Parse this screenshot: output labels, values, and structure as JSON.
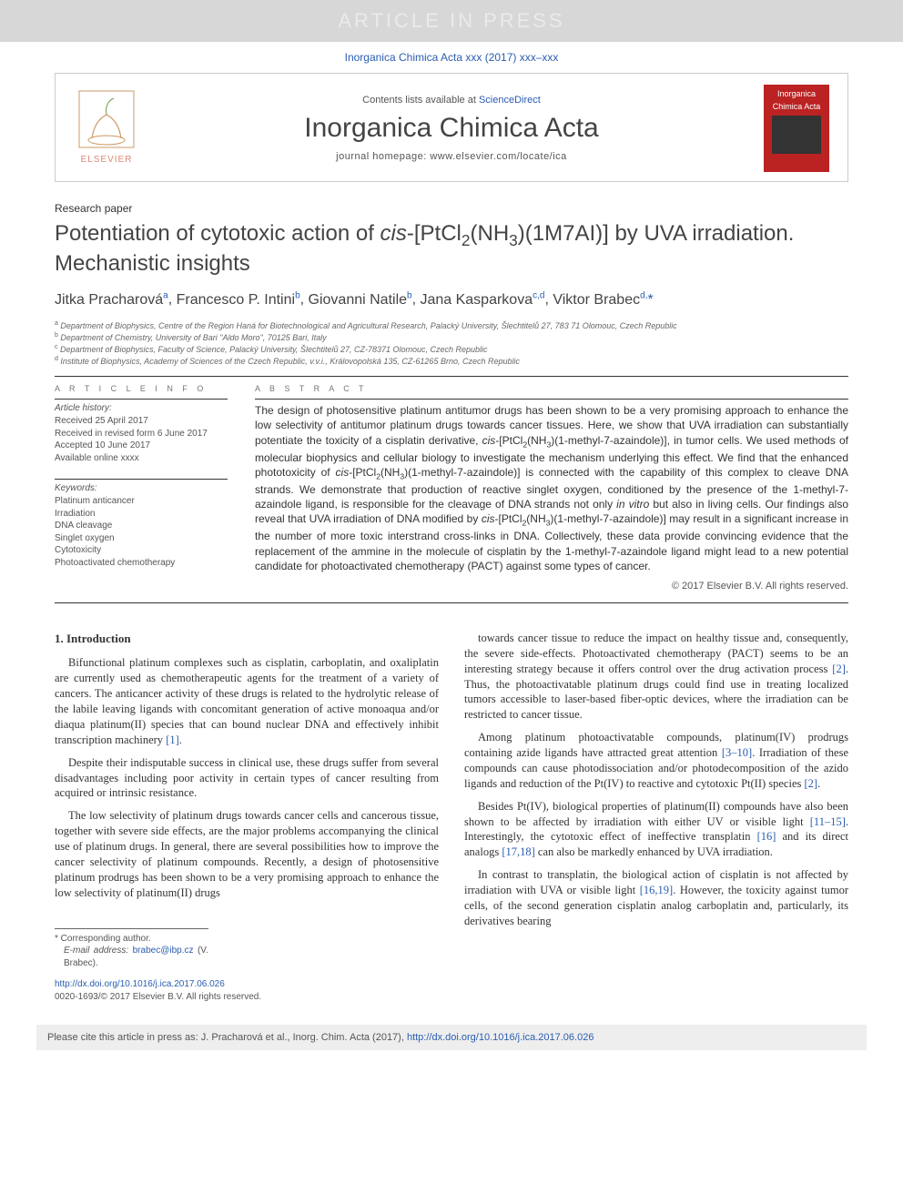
{
  "banner": {
    "text": "ARTICLE IN PRESS"
  },
  "citation_top": {
    "journal": "Inorganica Chimica Acta",
    "volume": "xxx (2017) xxx–xxx"
  },
  "masthead": {
    "contents_prefix": "Contents lists available at ",
    "contents_link": "ScienceDirect",
    "journal_title": "Inorganica Chimica Acta",
    "homepage_prefix": "journal homepage: ",
    "homepage_url": "www.elsevier.com/locate/ica",
    "elsevier_label": "ELSEVIER",
    "cover": {
      "line1": "Inorganica",
      "line2": "Chimica Acta"
    }
  },
  "paper": {
    "type": "Research paper",
    "title_html": "Potentiation of cytotoxic action of <i>cis</i>-[PtCl<sub>2</sub>(NH<sub>3</sub>)(1M7AI)] by UVA irradiation. Mechanistic insights",
    "authors": [
      {
        "name": "Jitka Pracharová",
        "aff": "a"
      },
      {
        "name": "Francesco P. Intini",
        "aff": "b"
      },
      {
        "name": "Giovanni Natile",
        "aff": "b"
      },
      {
        "name": "Jana Kasparkova",
        "aff": "c,d"
      },
      {
        "name": "Viktor Brabec",
        "aff": "d,",
        "star": true
      }
    ],
    "affiliations": [
      {
        "key": "a",
        "text": "Department of Biophysics, Centre of the Region Haná for Biotechnological and Agricultural Research, Palacký University, Šlechtitelů 27, 783 71 Olomouc, Czech Republic"
      },
      {
        "key": "b",
        "text": "Department of Chemistry, University of Bari \"Aldo Moro\", 70125 Bari, Italy"
      },
      {
        "key": "c",
        "text": "Department of Biophysics, Faculty of Science, Palacký University, Šlechtitelů 27, CZ-78371 Olomouc, Czech Republic"
      },
      {
        "key": "d",
        "text": "Institute of Biophysics, Academy of Sciences of the Czech Republic, v.v.i., Královopolská 135, CZ-61265 Brno, Czech Republic"
      }
    ]
  },
  "article_info": {
    "heading": "A R T I C L E   I N F O",
    "history_label": "Article history:",
    "history": [
      "Received 25 April 2017",
      "Received in revised form 6 June 2017",
      "Accepted 10 June 2017",
      "Available online xxxx"
    ],
    "keywords_label": "Keywords:",
    "keywords": [
      "Platinum anticancer",
      "Irradiation",
      "DNA cleavage",
      "Singlet oxygen",
      "Cytotoxicity",
      "Photoactivated chemotherapy"
    ]
  },
  "abstract": {
    "heading": "A B S T R A C T",
    "body_html": "The design of photosensitive platinum antitumor drugs has been shown to be a very promising approach to enhance the low selectivity of antitumor platinum drugs towards cancer tissues. Here, we show that UVA irradiation can substantially potentiate the toxicity of a cisplatin derivative, <i>cis</i>-[PtCl<sub>2</sub>(NH<sub>3</sub>)(1-methyl-7-azaindole)], in tumor cells. We used methods of molecular biophysics and cellular biology to investigate the mechanism underlying this effect. We find that the enhanced phototoxicity of <i>cis</i>-[PtCl<sub>2</sub>(NH<sub>3</sub>)(1-methyl-7-azaindole)] is connected with the capability of this complex to cleave DNA strands. We demonstrate that production of reactive singlet oxygen, conditioned by the presence of the 1-methyl-7-azaindole ligand, is responsible for the cleavage of DNA strands not only <i>in vitro</i> but also in living cells. Our findings also reveal that UVA irradiation of DNA modified by <i>cis</i>-[PtCl<sub>2</sub>(NH<sub>3</sub>)(1-methyl-7-azaindole)] may result in a significant increase in the number of more toxic interstrand cross-links in DNA. Collectively, these data provide convincing evidence that the replacement of the ammine in the molecule of cisplatin by the 1-methyl-7-azaindole ligand might lead to a new potential candidate for photoactivated chemotherapy (PACT) against some types of cancer.",
    "copyright": "© 2017 Elsevier B.V. All rights reserved."
  },
  "body": {
    "section_title": "1. Introduction",
    "left_paras_html": [
      "Bifunctional platinum complexes such as cisplatin, carboplatin, and oxaliplatin are currently used as chemotherapeutic agents for the treatment of a variety of cancers. The anticancer activity of these drugs is related to the hydrolytic release of the labile leaving ligands with concomitant generation of active monoaqua and/or diaqua platinum(II) species that can bound nuclear DNA and effectively inhibit transcription machinery <span class=\"cite-link\">[1]</span>.",
      "Despite their indisputable success in clinical use, these drugs suffer from several disadvantages including poor activity in certain types of cancer resulting from acquired or intrinsic resistance.",
      "The low selectivity of platinum drugs towards cancer cells and cancerous tissue, together with severe side effects, are the major problems accompanying the clinical use of platinum drugs. In general, there are several possibilities how to improve the cancer selectivity of platinum compounds. Recently, a design of photosensitive platinum prodrugs has been shown to be a very promising approach to enhance the low selectivity of platinum(II) drugs"
    ],
    "right_paras_html": [
      "towards cancer tissue to reduce the impact on healthy tissue and, consequently, the severe side-effects. Photoactivated chemotherapy (PACT) seems to be an interesting strategy because it offers control over the drug activation process <span class=\"cite-link\">[2]</span>. Thus, the photoactivatable platinum drugs could find use in treating localized tumors accessible to laser-based fiber-optic devices, where the irradiation can be restricted to cancer tissue.",
      "Among platinum photoactivatable compounds, platinum(IV) prodrugs containing azide ligands have attracted great attention <span class=\"cite-link\">[3–10]</span>. Irradiation of these compounds can cause photodissociation and/or photodecomposition of the azido ligands and reduction of the Pt(IV) to reactive and cytotoxic Pt(II) species <span class=\"cite-link\">[2]</span>.",
      "Besides Pt(IV), biological properties of platinum(II) compounds have also been shown to be affected by irradiation with either UV or visible light <span class=\"cite-link\">[11–15]</span>. Interestingly, the cytotoxic effect of ineffective transplatin <span class=\"cite-link\">[16]</span> and its direct analogs <span class=\"cite-link\">[17,18]</span> can also be markedly enhanced by UVA irradiation.",
      "In contrast to transplatin, the biological action of cisplatin is not affected by irradiation with UVA or visible light <span class=\"cite-link\">[16,19]</span>. However, the toxicity against tumor cells, of the second generation cisplatin analog carboplatin and, particularly, its derivatives bearing"
    ]
  },
  "footnote": {
    "corresponding": "Corresponding author.",
    "email_label": "E-mail address:",
    "email": "brabec@ibp.cz",
    "email_person": "(V. Brabec)."
  },
  "doi": {
    "url": "http://dx.doi.org/10.1016/j.ica.2017.06.026",
    "issn_copy": "0020-1693/© 2017 Elsevier B.V. All rights reserved."
  },
  "cite_footer": {
    "prefix": "Please cite this article in press as: J. Pracharová et al., Inorg. Chim. Acta (2017), ",
    "url": "http://dx.doi.org/10.1016/j.ica.2017.06.026"
  },
  "colors": {
    "link": "#2a5db0",
    "banner_bg": "#d7d7d7",
    "banner_fg": "#eaeaea",
    "cover_bg": "#b22222",
    "footer_bg": "#eeeeee",
    "rule": "#333333"
  }
}
